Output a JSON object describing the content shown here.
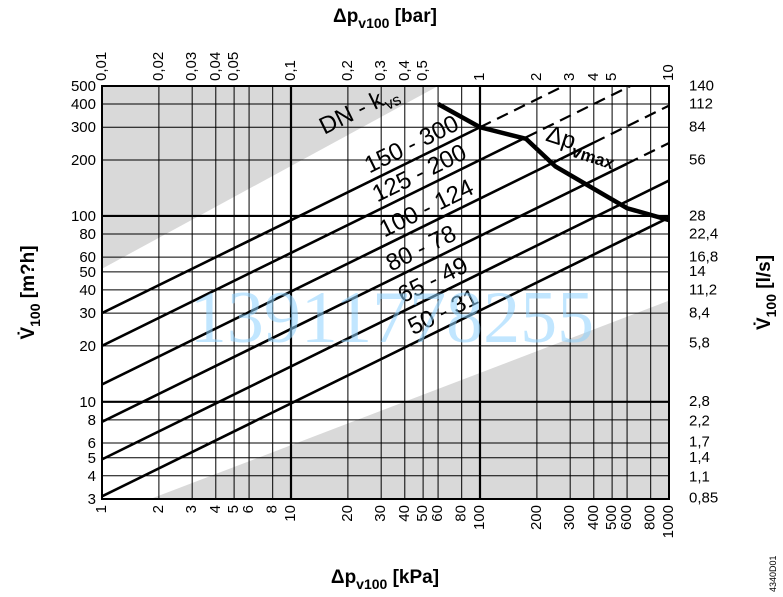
{
  "chart_data": {
    "type": "line",
    "x_scale": "log",
    "y_scale": "log",
    "xlim": [
      1,
      1000
    ],
    "ylim": [
      3,
      500
    ],
    "grid": true,
    "xlabel_bottom": {
      "main": "Δp",
      "sub": "v100",
      "unit": "[kPa]"
    },
    "xlabel_top": {
      "main": "Δp",
      "sub": "v100",
      "unit": "[bar]"
    },
    "ylabel_left": {
      "main": "V̇",
      "sub": "100",
      "unit": "[m?h]"
    },
    "ylabel_right": {
      "main": "V̇",
      "sub": "100",
      "unit": "[l/s]"
    },
    "x_ticks_bottom": [
      {
        "v": 1,
        "label": "1"
      },
      {
        "v": 2,
        "label": "2"
      },
      {
        "v": 3,
        "label": "3"
      },
      {
        "v": 4,
        "label": "4"
      },
      {
        "v": 5,
        "label": "5"
      },
      {
        "v": 6,
        "label": "6"
      },
      {
        "v": 8,
        "label": "8"
      },
      {
        "v": 10,
        "label": "10"
      },
      {
        "v": 20,
        "label": "20"
      },
      {
        "v": 30,
        "label": "30"
      },
      {
        "v": 40,
        "label": "40"
      },
      {
        "v": 50,
        "label": "50"
      },
      {
        "v": 60,
        "label": "60"
      },
      {
        "v": 80,
        "label": "80"
      },
      {
        "v": 100,
        "label": "100"
      },
      {
        "v": 200,
        "label": "200"
      },
      {
        "v": 300,
        "label": "300"
      },
      {
        "v": 400,
        "label": "400"
      },
      {
        "v": 500,
        "label": "500"
      },
      {
        "v": 600,
        "label": "600"
      },
      {
        "v": 800,
        "label": "800"
      },
      {
        "v": 1000,
        "label": "1000"
      }
    ],
    "x_ticks_top": [
      {
        "v": 1,
        "label": "0,01"
      },
      {
        "v": 2,
        "label": "0,02"
      },
      {
        "v": 3,
        "label": "0,03"
      },
      {
        "v": 4,
        "label": "0,04"
      },
      {
        "v": 5,
        "label": "0,05"
      },
      {
        "v": 10,
        "label": "0,1"
      },
      {
        "v": 20,
        "label": "0,2"
      },
      {
        "v": 30,
        "label": "0,3"
      },
      {
        "v": 40,
        "label": "0,4"
      },
      {
        "v": 50,
        "label": "0,5"
      },
      {
        "v": 100,
        "label": "1"
      },
      {
        "v": 200,
        "label": "2"
      },
      {
        "v": 300,
        "label": "3"
      },
      {
        "v": 400,
        "label": "4"
      },
      {
        "v": 500,
        "label": "5"
      },
      {
        "v": 1000,
        "label": "10"
      }
    ],
    "y_ticks_left": [
      {
        "v": 3,
        "label": "3"
      },
      {
        "v": 4,
        "label": "4"
      },
      {
        "v": 5,
        "label": "5"
      },
      {
        "v": 6,
        "label": "6"
      },
      {
        "v": 8,
        "label": "8"
      },
      {
        "v": 10,
        "label": "10"
      },
      {
        "v": 20,
        "label": "20"
      },
      {
        "v": 30,
        "label": "30"
      },
      {
        "v": 40,
        "label": "40"
      },
      {
        "v": 50,
        "label": "50"
      },
      {
        "v": 60,
        "label": "60"
      },
      {
        "v": 80,
        "label": "80"
      },
      {
        "v": 100,
        "label": "100"
      },
      {
        "v": 200,
        "label": "200"
      },
      {
        "v": 300,
        "label": "300"
      },
      {
        "v": 400,
        "label": "400"
      },
      {
        "v": 500,
        "label": "500"
      }
    ],
    "y_ticks_right": [
      {
        "v": 3.06,
        "label": "0,85"
      },
      {
        "v": 3.96,
        "label": "1,1"
      },
      {
        "v": 5.04,
        "label": "1,4"
      },
      {
        "v": 6.12,
        "label": "1,7"
      },
      {
        "v": 7.92,
        "label": "2,2"
      },
      {
        "v": 10.08,
        "label": "2,8"
      },
      {
        "v": 20.88,
        "label": "5,8"
      },
      {
        "v": 30.24,
        "label": "8,4"
      },
      {
        "v": 40.32,
        "label": "11,2"
      },
      {
        "v": 50.4,
        "label": "14"
      },
      {
        "v": 60.48,
        "label": "16,8"
      },
      {
        "v": 80.64,
        "label": "22,4"
      },
      {
        "v": 100.8,
        "label": "28"
      },
      {
        "v": 201.6,
        "label": "56"
      },
      {
        "v": 302.4,
        "label": "84"
      },
      {
        "v": 403.2,
        "label": "112"
      },
      {
        "v": 504,
        "label": "140"
      }
    ],
    "thick_gridlines_y": [
      10,
      100
    ],
    "thick_gridlines_x": [
      10,
      100
    ],
    "series_header": {
      "main": "DN - k",
      "sub": "vs"
    },
    "series": [
      {
        "name": "150 - 300",
        "kvs": 300,
        "x_range": [
          1,
          100
        ],
        "dashed_range": [
          100,
          500
        ]
      },
      {
        "name": "125 - 200",
        "kvs": 200,
        "x_range": [
          1,
          175
        ],
        "dashed_range": [
          175,
          625
        ]
      },
      {
        "name": "100 - 124",
        "kvs": 124,
        "x_range": [
          1,
          400
        ],
        "dashed_range": [
          400,
          1000
        ]
      },
      {
        "name": "80 - 78",
        "kvs": 78,
        "x_range": [
          1,
          600
        ],
        "dashed_range": [
          600,
          1000
        ]
      },
      {
        "name": "65 - 49",
        "kvs": 49,
        "x_range": [
          1,
          1000
        ]
      },
      {
        "name": "50 - 31",
        "kvs": 31,
        "x_range": [
          1,
          1000
        ]
      }
    ],
    "dp_max_curve": {
      "label_main": "Δp",
      "label_sub": "vmax",
      "points": [
        [
          60,
          400
        ],
        [
          100,
          300
        ],
        [
          175,
          260
        ],
        [
          250,
          185
        ],
        [
          400,
          140
        ],
        [
          600,
          110
        ],
        [
          1000,
          95
        ]
      ]
    },
    "watermark": "13911778255",
    "figure_code": "4340D01"
  }
}
